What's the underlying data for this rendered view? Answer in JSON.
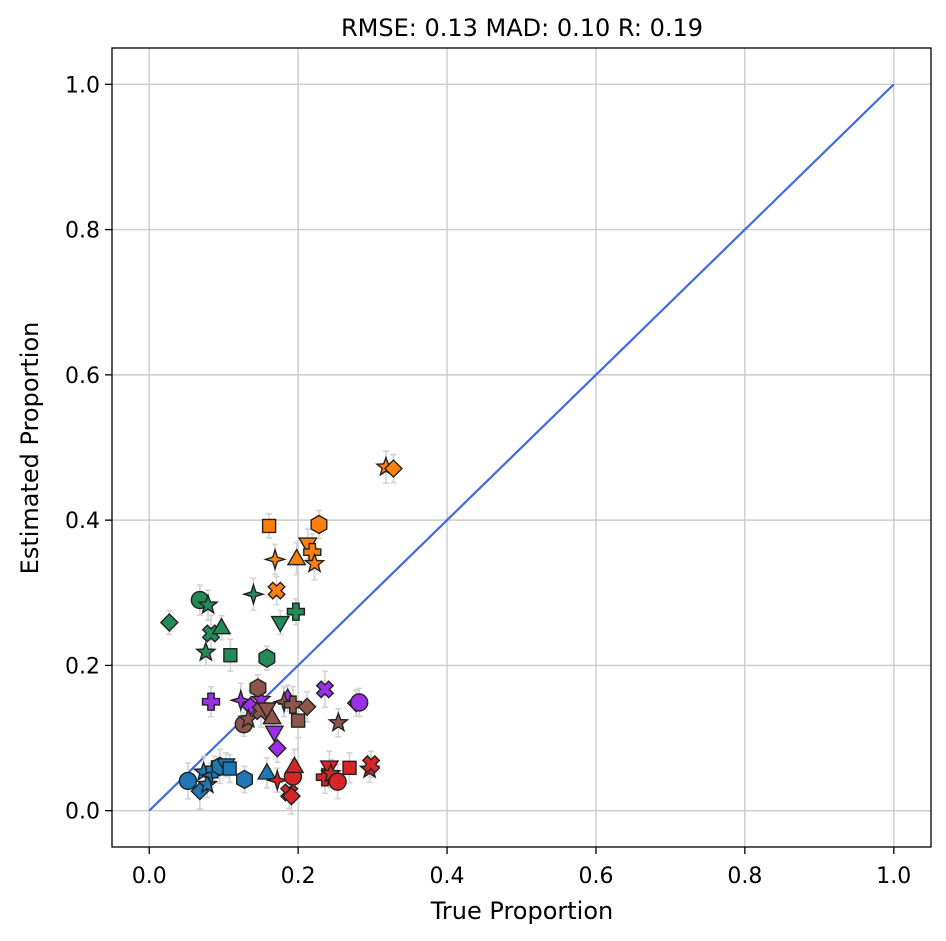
{
  "chart_data": {
    "type": "scatter",
    "title": "RMSE: 0.13 MAD: 0.10 R: 0.19",
    "xlabel": "True Proportion",
    "ylabel": "Estimated Proportion",
    "xlim": [
      -0.05,
      1.05
    ],
    "ylim": [
      -0.05,
      1.05
    ],
    "xticks": [
      0.0,
      0.2,
      0.4,
      0.6,
      0.8,
      1.0
    ],
    "yticks": [
      0.0,
      0.2,
      0.4,
      0.6,
      0.8,
      1.0
    ],
    "xtick_labels": [
      "0.0",
      "0.2",
      "0.4",
      "0.6",
      "0.8",
      "1.0"
    ],
    "ytick_labels": [
      "0.0",
      "0.2",
      "0.4",
      "0.6",
      "0.8",
      "1.0"
    ],
    "grid": true,
    "identity_line": {
      "x": [
        0,
        1
      ],
      "y": [
        0,
        1
      ],
      "color": "#4169e1"
    },
    "errorbar_color": "#d3d3d3",
    "series": [
      {
        "color": "#1f77b4",
        "points": [
          {
            "x": 0.052,
            "y": 0.041,
            "marker": "circle"
          },
          {
            "x": 0.068,
            "y": 0.027,
            "marker": "diamond"
          },
          {
            "x": 0.073,
            "y": 0.053,
            "marker": "star"
          },
          {
            "x": 0.078,
            "y": 0.036,
            "marker": "star"
          },
          {
            "x": 0.083,
            "y": 0.049,
            "marker": "star4"
          },
          {
            "x": 0.088,
            "y": 0.057,
            "marker": "cross"
          },
          {
            "x": 0.095,
            "y": 0.061,
            "marker": "hexagon"
          },
          {
            "x": 0.103,
            "y": 0.063,
            "marker": "triangle-down"
          },
          {
            "x": 0.108,
            "y": 0.058,
            "marker": "square"
          },
          {
            "x": 0.128,
            "y": 0.043,
            "marker": "hexagon"
          },
          {
            "x": 0.158,
            "y": 0.052,
            "marker": "triangle"
          }
        ]
      },
      {
        "color": "#ff7f0e",
        "points": [
          {
            "x": 0.161,
            "y": 0.392,
            "marker": "square"
          },
          {
            "x": 0.169,
            "y": 0.346,
            "marker": "star4"
          },
          {
            "x": 0.171,
            "y": 0.303,
            "marker": "x"
          },
          {
            "x": 0.198,
            "y": 0.347,
            "marker": "triangle"
          },
          {
            "x": 0.213,
            "y": 0.367,
            "marker": "triangle-down"
          },
          {
            "x": 0.219,
            "y": 0.356,
            "marker": "cross"
          },
          {
            "x": 0.222,
            "y": 0.34,
            "marker": "star"
          },
          {
            "x": 0.228,
            "y": 0.394,
            "marker": "hexagon"
          },
          {
            "x": 0.318,
            "y": 0.473,
            "marker": "star"
          },
          {
            "x": 0.328,
            "y": 0.471,
            "marker": "diamond"
          }
        ]
      },
      {
        "color": "#2ca02c",
        "shade": "#228b57",
        "points": [
          {
            "x": 0.027,
            "y": 0.259,
            "marker": "diamond"
          },
          {
            "x": 0.068,
            "y": 0.29,
            "marker": "circle"
          },
          {
            "x": 0.076,
            "y": 0.218,
            "marker": "star"
          },
          {
            "x": 0.079,
            "y": 0.283,
            "marker": "star"
          },
          {
            "x": 0.083,
            "y": 0.244,
            "marker": "x"
          },
          {
            "x": 0.097,
            "y": 0.252,
            "marker": "triangle"
          },
          {
            "x": 0.109,
            "y": 0.214,
            "marker": "square"
          },
          {
            "x": 0.14,
            "y": 0.298,
            "marker": "star4"
          },
          {
            "x": 0.158,
            "y": 0.21,
            "marker": "hexagon"
          },
          {
            "x": 0.176,
            "y": 0.259,
            "marker": "triangle-down"
          },
          {
            "x": 0.197,
            "y": 0.274,
            "marker": "cross"
          }
        ]
      },
      {
        "color": "#d62728",
        "points": [
          {
            "x": 0.172,
            "y": 0.042,
            "marker": "star4"
          },
          {
            "x": 0.188,
            "y": 0.025,
            "marker": "x"
          },
          {
            "x": 0.191,
            "y": 0.02,
            "marker": "diamond"
          },
          {
            "x": 0.193,
            "y": 0.047,
            "marker": "circle"
          },
          {
            "x": 0.195,
            "y": 0.061,
            "marker": "triangle"
          },
          {
            "x": 0.236,
            "y": 0.046,
            "marker": "cross"
          },
          {
            "x": 0.242,
            "y": 0.06,
            "marker": "triangle-down"
          },
          {
            "x": 0.244,
            "y": 0.051,
            "marker": "star"
          },
          {
            "x": 0.253,
            "y": 0.04,
            "marker": "circle"
          },
          {
            "x": 0.269,
            "y": 0.059,
            "marker": "square"
          },
          {
            "x": 0.296,
            "y": 0.057,
            "marker": "star"
          },
          {
            "x": 0.298,
            "y": 0.064,
            "marker": "x"
          }
        ]
      },
      {
        "color": "#9b30e8",
        "points": [
          {
            "x": 0.083,
            "y": 0.15,
            "marker": "cross"
          },
          {
            "x": 0.123,
            "y": 0.152,
            "marker": "star4"
          },
          {
            "x": 0.136,
            "y": 0.144,
            "marker": "diamond"
          },
          {
            "x": 0.15,
            "y": 0.153,
            "marker": "star"
          },
          {
            "x": 0.168,
            "y": 0.108,
            "marker": "triangle-down"
          },
          {
            "x": 0.172,
            "y": 0.086,
            "marker": "diamond"
          },
          {
            "x": 0.186,
            "y": 0.155,
            "marker": "triangle"
          },
          {
            "x": 0.236,
            "y": 0.167,
            "marker": "x"
          },
          {
            "x": 0.278,
            "y": 0.148,
            "marker": "diamond"
          },
          {
            "x": 0.282,
            "y": 0.149,
            "marker": "circle"
          }
        ]
      },
      {
        "color": "#8c564b",
        "points": [
          {
            "x": 0.127,
            "y": 0.119,
            "marker": "circle"
          },
          {
            "x": 0.133,
            "y": 0.126,
            "marker": "star"
          },
          {
            "x": 0.146,
            "y": 0.169,
            "marker": "hexagon"
          },
          {
            "x": 0.15,
            "y": 0.137,
            "marker": "x"
          },
          {
            "x": 0.158,
            "y": 0.14,
            "marker": "triangle-down"
          },
          {
            "x": 0.165,
            "y": 0.128,
            "marker": "triangle"
          },
          {
            "x": 0.181,
            "y": 0.15,
            "marker": "star4"
          },
          {
            "x": 0.193,
            "y": 0.146,
            "marker": "cross"
          },
          {
            "x": 0.2,
            "y": 0.124,
            "marker": "square"
          },
          {
            "x": 0.212,
            "y": 0.143,
            "marker": "diamond"
          },
          {
            "x": 0.254,
            "y": 0.121,
            "marker": "star"
          }
        ]
      }
    ]
  }
}
